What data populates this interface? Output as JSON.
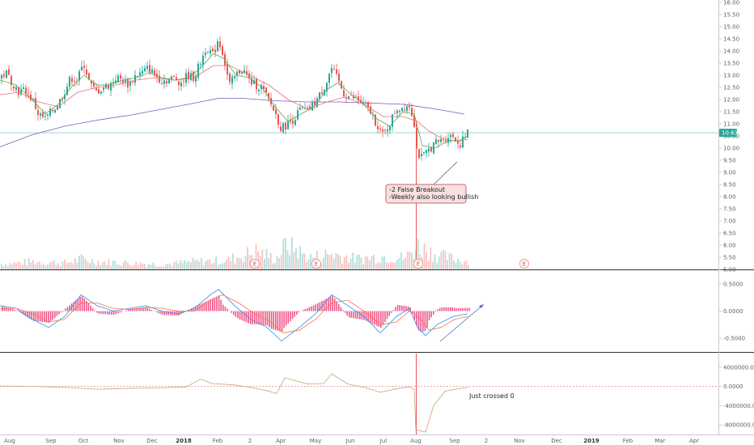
{
  "chart_data": {
    "type": "candlestick",
    "price_axis": {
      "ticks": [
        "16.00",
        "15.50",
        "15.00",
        "14.50",
        "14.00",
        "13.50",
        "13.00",
        "12.50",
        "12.00",
        "11.50",
        "11.00",
        "10.50",
        "10.00",
        "9.50",
        "9.00",
        "8.50",
        "8.00",
        "7.50",
        "7.00",
        "6.50",
        "6.00",
        "5.50",
        "5.00"
      ],
      "range": [
        5.0,
        16.0
      ],
      "last_price": "10.63"
    },
    "macd_axis": {
      "ticks": [
        "0.5000",
        "0.0000",
        "-0.5000"
      ],
      "range": [
        -0.75,
        0.75
      ]
    },
    "obv_axis": {
      "ticks": [
        "4000000.0000",
        "0.0000",
        "-4000000.0000",
        "-8000000.0000"
      ],
      "range": [
        -10000000,
        7000000
      ]
    },
    "x_labels": [
      {
        "label": "Aug",
        "bold": false
      },
      {
        "label": "Sep",
        "bold": false
      },
      {
        "label": "Oct",
        "bold": false
      },
      {
        "label": "Nov",
        "bold": false
      },
      {
        "label": "Dec",
        "bold": false
      },
      {
        "label": "2018",
        "bold": true
      },
      {
        "label": "Feb",
        "bold": false
      },
      {
        "label": "2",
        "bold": false
      },
      {
        "label": "Apr",
        "bold": false
      },
      {
        "label": "May",
        "bold": false
      },
      {
        "label": "Jun",
        "bold": false
      },
      {
        "label": "Jul",
        "bold": false
      },
      {
        "label": "Aug",
        "bold": false
      },
      {
        "label": "Sep",
        "bold": false
      },
      {
        "label": "2",
        "bold": false
      },
      {
        "label": "Nov",
        "bold": false
      },
      {
        "label": "Dec",
        "bold": false
      },
      {
        "label": "2019",
        "bold": true
      },
      {
        "label": "Feb",
        "bold": false
      },
      {
        "label": "Mar",
        "bold": false
      },
      {
        "label": "Apr",
        "bold": false
      }
    ],
    "price_path": [
      [
        0,
        12.9
      ],
      [
        8,
        13.1
      ],
      [
        16,
        12.7
      ],
      [
        24,
        12.3
      ],
      [
        32,
        12.4
      ],
      [
        40,
        12.0
      ],
      [
        48,
        11.4
      ],
      [
        56,
        11.2
      ],
      [
        64,
        11.5
      ],
      [
        72,
        11.8
      ],
      [
        80,
        12.3
      ],
      [
        88,
        12.9
      ],
      [
        96,
        12.8
      ],
      [
        104,
        13.5
      ],
      [
        112,
        12.6
      ],
      [
        120,
        12.3
      ],
      [
        128,
        12.5
      ],
      [
        136,
        12.6
      ],
      [
        144,
        12.9
      ],
      [
        152,
        12.8
      ],
      [
        160,
        12.6
      ],
      [
        168,
        13.0
      ],
      [
        176,
        13.1
      ],
      [
        184,
        13.3
      ],
      [
        192,
        13.0
      ],
      [
        200,
        12.8
      ],
      [
        208,
        12.8
      ],
      [
        216,
        12.9
      ],
      [
        224,
        12.7
      ],
      [
        232,
        13.0
      ],
      [
        240,
        12.9
      ],
      [
        248,
        13.5
      ],
      [
        256,
        14.2
      ],
      [
        264,
        13.8
      ],
      [
        270,
        14.5
      ],
      [
        276,
        13.9
      ],
      [
        284,
        12.6
      ],
      [
        292,
        13.0
      ],
      [
        300,
        13.3
      ],
      [
        308,
        12.8
      ],
      [
        316,
        12.6
      ],
      [
        324,
        12.5
      ],
      [
        332,
        12.0
      ],
      [
        340,
        11.5
      ],
      [
        348,
        10.8
      ],
      [
        356,
        11.0
      ],
      [
        364,
        11.2
      ],
      [
        372,
        11.6
      ],
      [
        380,
        11.5
      ],
      [
        388,
        11.8
      ],
      [
        396,
        12.2
      ],
      [
        404,
        12.7
      ],
      [
        410,
        13.3
      ],
      [
        418,
        12.8
      ],
      [
        426,
        12.2
      ],
      [
        434,
        12.1
      ],
      [
        442,
        12.0
      ],
      [
        450,
        11.8
      ],
      [
        458,
        11.5
      ],
      [
        466,
        11.0
      ],
      [
        474,
        10.5
      ],
      [
        482,
        11.0
      ],
      [
        490,
        11.6
      ],
      [
        498,
        11.7
      ],
      [
        506,
        11.8
      ],
      [
        512,
        11.2
      ],
      [
        516,
        9.8
      ],
      [
        522,
        9.6
      ],
      [
        530,
        9.9
      ],
      [
        538,
        10.2
      ],
      [
        546,
        10.3
      ],
      [
        554,
        10.5
      ],
      [
        562,
        10.5
      ],
      [
        568,
        10.1
      ],
      [
        574,
        10.4
      ],
      [
        578,
        10.63
      ]
    ],
    "ma_short": [
      [
        0,
        12.8
      ],
      [
        20,
        12.6
      ],
      [
        40,
        12.0
      ],
      [
        56,
        11.4
      ],
      [
        72,
        11.8
      ],
      [
        88,
        12.5
      ],
      [
        104,
        13.0
      ],
      [
        120,
        12.6
      ],
      [
        136,
        12.6
      ],
      [
        152,
        12.8
      ],
      [
        168,
        12.9
      ],
      [
        184,
        13.1
      ],
      [
        200,
        12.9
      ],
      [
        216,
        12.8
      ],
      [
        232,
        12.9
      ],
      [
        248,
        13.3
      ],
      [
        264,
        13.9
      ],
      [
        276,
        13.7
      ],
      [
        292,
        13.0
      ],
      [
        308,
        12.9
      ],
      [
        324,
        12.5
      ],
      [
        340,
        11.7
      ],
      [
        356,
        11.1
      ],
      [
        372,
        11.4
      ],
      [
        388,
        11.7
      ],
      [
        404,
        12.4
      ],
      [
        418,
        12.7
      ],
      [
        434,
        12.2
      ],
      [
        450,
        11.8
      ],
      [
        466,
        11.2
      ],
      [
        482,
        10.9
      ],
      [
        498,
        11.5
      ],
      [
        512,
        11.4
      ],
      [
        522,
        10.1
      ],
      [
        538,
        10.0
      ],
      [
        554,
        10.3
      ],
      [
        568,
        10.3
      ],
      [
        578,
        10.5
      ]
    ],
    "ma_mid": [
      [
        0,
        12.2
      ],
      [
        24,
        12.3
      ],
      [
        48,
        11.9
      ],
      [
        72,
        11.7
      ],
      [
        96,
        12.3
      ],
      [
        120,
        12.5
      ],
      [
        144,
        12.6
      ],
      [
        168,
        12.8
      ],
      [
        192,
        12.9
      ],
      [
        216,
        12.8
      ],
      [
        240,
        12.9
      ],
      [
        264,
        13.4
      ],
      [
        284,
        13.4
      ],
      [
        308,
        13.0
      ],
      [
        332,
        12.6
      ],
      [
        356,
        12.0
      ],
      [
        380,
        11.6
      ],
      [
        404,
        11.9
      ],
      [
        426,
        12.1
      ],
      [
        450,
        11.8
      ],
      [
        474,
        11.3
      ],
      [
        498,
        11.3
      ],
      [
        516,
        11.1
      ],
      [
        530,
        10.7
      ],
      [
        546,
        10.4
      ],
      [
        562,
        10.3
      ],
      [
        578,
        10.35
      ]
    ],
    "ma_long": [
      [
        0,
        10.05
      ],
      [
        40,
        10.55
      ],
      [
        80,
        10.9
      ],
      [
        120,
        11.15
      ],
      [
        160,
        11.35
      ],
      [
        200,
        11.6
      ],
      [
        240,
        11.85
      ],
      [
        270,
        12.05
      ],
      [
        300,
        12.05
      ],
      [
        340,
        11.95
      ],
      [
        380,
        11.9
      ],
      [
        420,
        11.9
      ],
      [
        460,
        11.85
      ],
      [
        500,
        11.8
      ],
      [
        540,
        11.6
      ],
      [
        574,
        11.4
      ]
    ],
    "volume_profile": [
      [
        0,
        0.2
      ],
      [
        40,
        0.3
      ],
      [
        80,
        0.25
      ],
      [
        100,
        0.4
      ],
      [
        120,
        0.3
      ],
      [
        160,
        0.25
      ],
      [
        200,
        0.2
      ],
      [
        240,
        0.3
      ],
      [
        280,
        0.35
      ],
      [
        316,
        0.7
      ],
      [
        340,
        0.4
      ],
      [
        354,
        1.0
      ],
      [
        380,
        0.45
      ],
      [
        410,
        0.6
      ],
      [
        440,
        0.4
      ],
      [
        470,
        0.5
      ],
      [
        500,
        0.45
      ],
      [
        516,
        0.9
      ],
      [
        540,
        0.55
      ],
      [
        560,
        0.4
      ],
      [
        576,
        0.35
      ]
    ],
    "earnings_markers": [
      "E",
      "E",
      "E",
      "E"
    ],
    "macd_line": [
      [
        0,
        0.1
      ],
      [
        20,
        0.05
      ],
      [
        40,
        -0.15
      ],
      [
        60,
        -0.3
      ],
      [
        80,
        -0.1
      ],
      [
        100,
        0.3
      ],
      [
        120,
        0.1
      ],
      [
        140,
        0.0
      ],
      [
        160,
        0.05
      ],
      [
        180,
        0.1
      ],
      [
        200,
        0.0
      ],
      [
        220,
        -0.05
      ],
      [
        240,
        0.05
      ],
      [
        260,
        0.3
      ],
      [
        270,
        0.4
      ],
      [
        290,
        0.1
      ],
      [
        310,
        -0.15
      ],
      [
        330,
        -0.3
      ],
      [
        348,
        -0.55
      ],
      [
        370,
        -0.3
      ],
      [
        390,
        -0.05
      ],
      [
        410,
        0.3
      ],
      [
        430,
        0.1
      ],
      [
        450,
        -0.1
      ],
      [
        470,
        -0.4
      ],
      [
        490,
        -0.1
      ],
      [
        506,
        0.05
      ],
      [
        516,
        -0.3
      ],
      [
        526,
        -0.45
      ],
      [
        540,
        -0.25
      ],
      [
        560,
        -0.1
      ],
      [
        578,
        -0.05
      ]
    ],
    "signal_line": [
      [
        0,
        0.05
      ],
      [
        20,
        0.05
      ],
      [
        40,
        -0.05
      ],
      [
        60,
        -0.2
      ],
      [
        80,
        -0.15
      ],
      [
        100,
        0.15
      ],
      [
        120,
        0.15
      ],
      [
        140,
        0.05
      ],
      [
        160,
        0.03
      ],
      [
        180,
        0.07
      ],
      [
        200,
        0.05
      ],
      [
        220,
        0.0
      ],
      [
        240,
        0.0
      ],
      [
        260,
        0.2
      ],
      [
        275,
        0.3
      ],
      [
        295,
        0.15
      ],
      [
        315,
        -0.05
      ],
      [
        335,
        -0.2
      ],
      [
        350,
        -0.4
      ],
      [
        370,
        -0.35
      ],
      [
        390,
        -0.15
      ],
      [
        410,
        0.15
      ],
      [
        430,
        0.2
      ],
      [
        450,
        0.0
      ],
      [
        470,
        -0.25
      ],
      [
        490,
        -0.2
      ],
      [
        506,
        0.0
      ],
      [
        520,
        -0.15
      ],
      [
        530,
        -0.35
      ],
      [
        545,
        -0.3
      ],
      [
        562,
        -0.15
      ],
      [
        578,
        -0.1
      ]
    ],
    "obv_path": [
      [
        0,
        100000
      ],
      [
        40,
        0
      ],
      [
        80,
        -200000
      ],
      [
        120,
        -600000
      ],
      [
        160,
        -400000
      ],
      [
        200,
        -300000
      ],
      [
        230,
        -100000
      ],
      [
        248,
        1500000
      ],
      [
        262,
        600000
      ],
      [
        290,
        300000
      ],
      [
        310,
        -200000
      ],
      [
        330,
        -900000
      ],
      [
        342,
        -1500000
      ],
      [
        352,
        1800000
      ],
      [
        380,
        500000
      ],
      [
        400,
        600000
      ],
      [
        410,
        2600000
      ],
      [
        430,
        500000
      ],
      [
        450,
        -200000
      ],
      [
        470,
        -1200000
      ],
      [
        490,
        -500000
      ],
      [
        506,
        -100000
      ],
      [
        512,
        -600000
      ],
      [
        514,
        -9000000
      ],
      [
        526,
        -9500000
      ],
      [
        536,
        -4000000
      ],
      [
        550,
        -1000000
      ],
      [
        566,
        -500000
      ],
      [
        578,
        -200000
      ]
    ],
    "annotations": {
      "breakout": "-2 False Breakout\n-Weekly also looking bullish",
      "obv_note": "Just crossed 0"
    },
    "colors": {
      "up": "#26a69a",
      "down": "#ef5350",
      "ma_short": "#4caf50",
      "ma_mid": "#e57373",
      "ma_long": "#7e57c2",
      "macd": "#2196f3",
      "signal": "#ff7043",
      "histogram": "#e91e63",
      "obv": "#c9a47e"
    },
    "grid": false
  }
}
